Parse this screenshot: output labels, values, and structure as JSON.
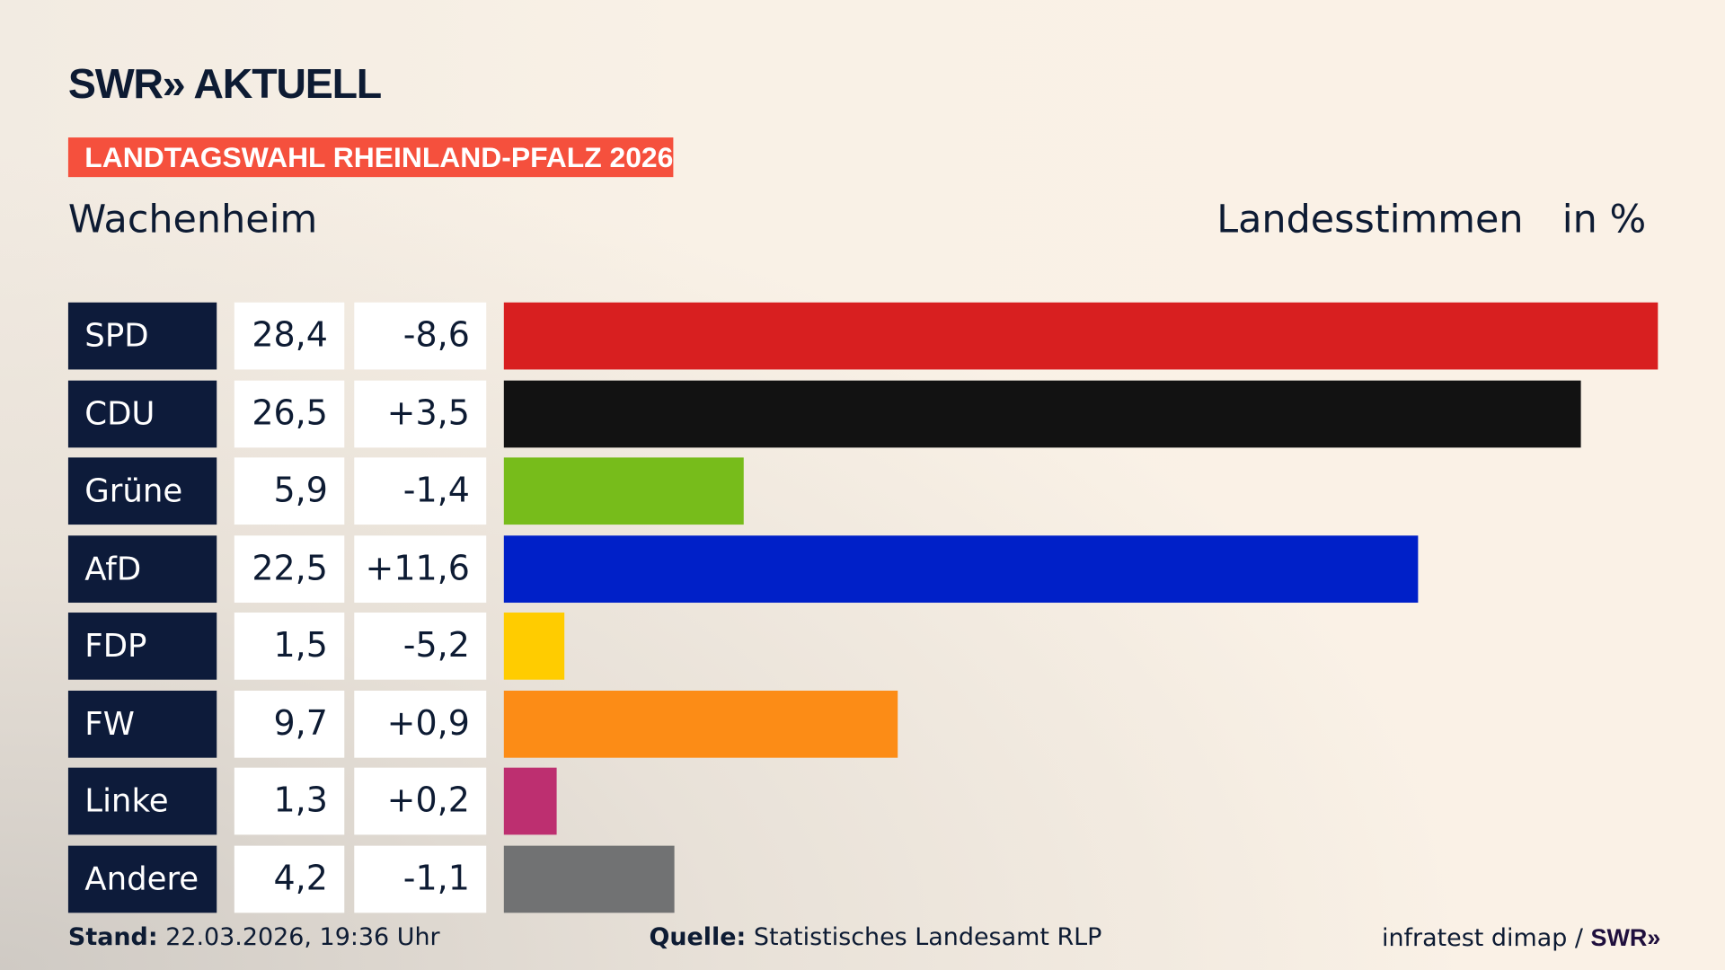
{
  "header": {
    "logo": "SWR» AKTUELL",
    "banner": "LANDTAGSWAHL RHEINLAND-PFALZ 2026",
    "location": "Wachenheim",
    "measure": "Landesstimmen",
    "unit": "in %"
  },
  "chart_data": {
    "type": "bar",
    "orientation": "horizontal",
    "categories": [
      "SPD",
      "CDU",
      "Grüne",
      "AfD",
      "FDP",
      "FW",
      "Linke",
      "Andere"
    ],
    "values": [
      28.4,
      26.5,
      5.9,
      22.5,
      1.5,
      9.7,
      1.3,
      4.2
    ],
    "value_labels": [
      "28,4",
      "26,5",
      "5,9",
      "22,5",
      "1,5",
      "9,7",
      "1,3",
      "4,2"
    ],
    "diff_labels": [
      "-8,6",
      "+3,5",
      "-1,4",
      "+11,6",
      "-5,2",
      "+0,9",
      "+0,2",
      "-1,1"
    ],
    "diffs": [
      -8.6,
      3.5,
      -1.4,
      11.6,
      -5.2,
      0.9,
      0.2,
      -1.1
    ],
    "colors": [
      "#d81f20",
      "#121212",
      "#77bc1b",
      "#0020c8",
      "#ffcc00",
      "#fc8c16",
      "#bd2f70",
      "#717273"
    ],
    "xlim": [
      0,
      28.4
    ],
    "grid": false,
    "legend": "none"
  },
  "footer": {
    "stand_label": "Stand:",
    "stand": "22.03.2026, 19:36 Uhr",
    "quelle_label": "Quelle:",
    "quelle": "Statistisches Landesamt RLP",
    "credit": "infratest dimap /",
    "credit_logo": "SWR»"
  }
}
